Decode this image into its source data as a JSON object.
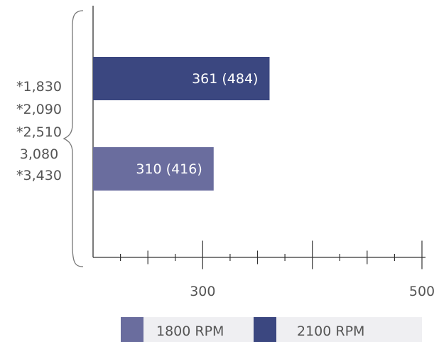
{
  "chart_data": {
    "type": "bar",
    "orientation": "horizontal",
    "category_labels": [
      "*1,830",
      "*2,090",
      "*2,510",
      "3,080",
      "*3,430"
    ],
    "series": [
      {
        "name": "2100 RPM",
        "value": 361,
        "label": "361 (484)"
      },
      {
        "name": "1800 RPM",
        "value": 310,
        "label": "310 (416)"
      }
    ],
    "x_ticks": [
      {
        "value": 300,
        "label": "300"
      },
      {
        "value": 500,
        "label": "500"
      }
    ],
    "xlim": [
      200,
      500
    ],
    "minor_tick_step": 25,
    "major_tick_step": 100,
    "legend": {
      "placement": "bottom",
      "items": [
        {
          "label": "1800 RPM",
          "color": "#6a6d9e"
        },
        {
          "label": "2100 RPM",
          "color": "#3b4780"
        }
      ]
    },
    "colors": {
      "2100 RPM": "#3b4780",
      "1800 RPM": "#6a6d9e",
      "legend_bg": "#efeff2"
    }
  }
}
